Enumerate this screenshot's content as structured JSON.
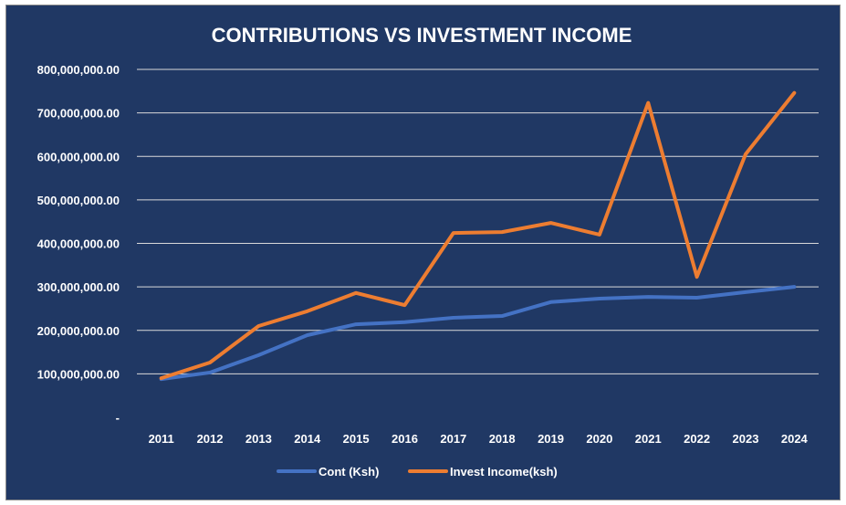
{
  "chart_data": {
    "type": "line",
    "title": "CONTRIBUTIONS VS INVESTMENT INCOME",
    "xlabel": "",
    "ylabel": "",
    "categories": [
      "2011",
      "2012",
      "2013",
      "2014",
      "2015",
      "2016",
      "2017",
      "2018",
      "2019",
      "2020",
      "2021",
      "2022",
      "2023",
      "2024"
    ],
    "ylim": [
      0,
      800000000
    ],
    "yticks": [
      0,
      100000000,
      200000000,
      300000000,
      400000000,
      500000000,
      600000000,
      700000000,
      800000000
    ],
    "ytick_labels": [
      "-",
      "100,000,000.00",
      "200,000,000.00",
      "300,000,000.00",
      "400,000,000.00",
      "500,000,000.00",
      "600,000,000.00",
      "700,000,000.00",
      "800,000,000.00"
    ],
    "grid": true,
    "legend_position": "bottom",
    "series": [
      {
        "name": "Cont (Ksh)",
        "color": "#4472C4",
        "values": [
          88000000,
          103000000,
          143000000,
          189000000,
          214000000,
          219000000,
          229000000,
          233000000,
          265000000,
          273000000,
          277000000,
          275000000,
          288000000,
          300000000
        ]
      },
      {
        "name": "Invest Income(ksh)",
        "color": "#ED7D31",
        "values": [
          90000000,
          126000000,
          210000000,
          244000000,
          286000000,
          258000000,
          424000000,
          426000000,
          447000000,
          420000000,
          723000000,
          323000000,
          605000000,
          746000000
        ]
      }
    ]
  }
}
